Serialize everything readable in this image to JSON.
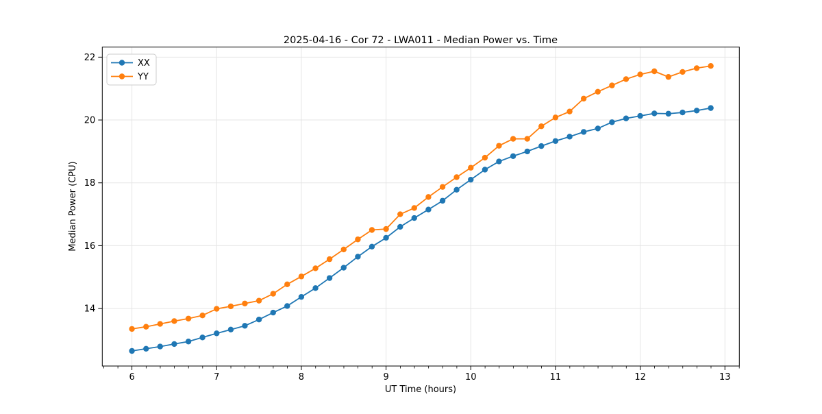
{
  "figure": {
    "background": "#ffffff"
  },
  "chart_data": {
    "type": "line",
    "title": "2025-04-16 - Cor 72 - LWA011 - Median Power vs. Time",
    "xlabel": "UT Time (hours)",
    "ylabel": "Median Power (CPU)",
    "xlim": [
      5.65,
      13.17
    ],
    "ylim": [
      12.17,
      22.32
    ],
    "xticks": [
      6,
      7,
      8,
      9,
      10,
      11,
      12,
      13
    ],
    "yticks": [
      14,
      16,
      18,
      20,
      22
    ],
    "x_minor_step": 0.1667,
    "grid": true,
    "grid_color": "#e5e5e5",
    "legend_position": "upper-left",
    "x": [
      6.0,
      6.167,
      6.333,
      6.5,
      6.667,
      6.833,
      7.0,
      7.167,
      7.333,
      7.5,
      7.667,
      7.833,
      8.0,
      8.167,
      8.333,
      8.5,
      8.667,
      8.833,
      9.0,
      9.167,
      9.333,
      9.5,
      9.667,
      9.833,
      10.0,
      10.167,
      10.333,
      10.5,
      10.667,
      10.833,
      11.0,
      11.167,
      11.333,
      11.5,
      11.667,
      11.833,
      12.0,
      12.167,
      12.333,
      12.5,
      12.667,
      12.833
    ],
    "series": [
      {
        "name": "XX",
        "color": "#1f77b4",
        "marker": "circle",
        "values": [
          12.65,
          12.72,
          12.79,
          12.87,
          12.95,
          13.08,
          13.21,
          13.33,
          13.45,
          13.65,
          13.87,
          14.08,
          14.37,
          14.65,
          14.97,
          15.3,
          15.65,
          15.97,
          16.25,
          16.6,
          16.88,
          17.15,
          17.43,
          17.78,
          18.1,
          18.42,
          18.68,
          18.85,
          19.0,
          19.17,
          19.33,
          19.47,
          19.62,
          19.73,
          19.93,
          20.05,
          20.13,
          20.21,
          20.2,
          20.24,
          20.3,
          20.38
        ]
      },
      {
        "name": "YY",
        "color": "#ff7f0e",
        "marker": "circle",
        "values": [
          13.35,
          13.42,
          13.51,
          13.6,
          13.68,
          13.78,
          13.99,
          14.07,
          14.16,
          14.25,
          14.47,
          14.77,
          15.02,
          15.28,
          15.57,
          15.88,
          16.2,
          16.5,
          16.53,
          17.0,
          17.2,
          17.55,
          17.87,
          18.18,
          18.48,
          18.8,
          19.18,
          19.4,
          19.4,
          19.8,
          20.08,
          20.27,
          20.68,
          20.9,
          21.1,
          21.3,
          21.45,
          21.55,
          21.37,
          21.53,
          21.65,
          21.72
        ]
      }
    ]
  }
}
